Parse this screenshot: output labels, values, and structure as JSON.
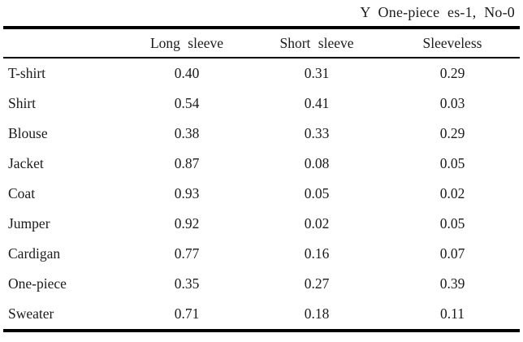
{
  "caption": "Y One-piece es-1, No-0",
  "chart_data": {
    "type": "table",
    "title": "Y One-piece es-1, No-0",
    "columns": [
      "",
      "Long sleeve",
      "Short sleeve",
      "Sleeveless"
    ],
    "rows": [
      {
        "label": "T-shirt",
        "values": [
          "0.40",
          "0.31",
          "0.29"
        ]
      },
      {
        "label": "Shirt",
        "values": [
          "0.54",
          "0.41",
          "0.03"
        ]
      },
      {
        "label": "Blouse",
        "values": [
          "0.38",
          "0.33",
          "0.29"
        ]
      },
      {
        "label": "Jacket",
        "values": [
          "0.87",
          "0.08",
          "0.05"
        ]
      },
      {
        "label": "Coat",
        "values": [
          "0.93",
          "0.05",
          "0.02"
        ]
      },
      {
        "label": "Jumper",
        "values": [
          "0.92",
          "0.02",
          "0.05"
        ]
      },
      {
        "label": "Cardigan",
        "values": [
          "0.77",
          "0.16",
          "0.07"
        ]
      },
      {
        "label": "One-piece",
        "values": [
          "0.35",
          "0.27",
          "0.39"
        ]
      },
      {
        "label": "Sweater",
        "values": [
          "0.71",
          "0.18",
          "0.11"
        ]
      }
    ]
  },
  "colors": {
    "text": "#1b1b1b",
    "rule": "#000000",
    "background": "#ffffff"
  }
}
